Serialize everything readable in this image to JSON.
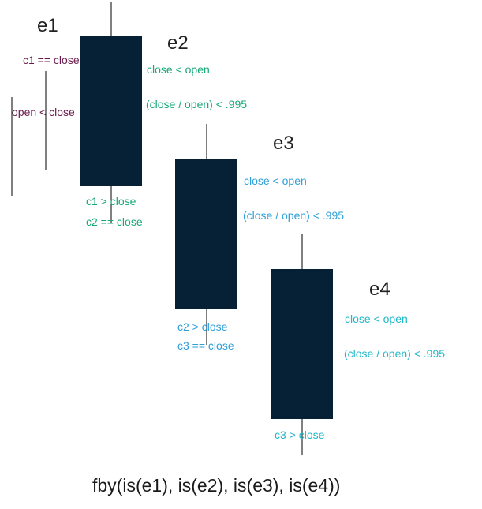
{
  "colors": {
    "candle": "#062136",
    "wick": "#000000",
    "event_label": "#222222",
    "e1": "#6a1b4d",
    "e2": "#17a877",
    "e3": "#2d9fd9",
    "e4": "#1fb8c9",
    "formula": "#1a1a1a"
  },
  "events": [
    {
      "name": "e1",
      "conditions": [
        "c1 == close",
        "open < close"
      ]
    },
    {
      "name": "e2",
      "conditions": [
        "close < open",
        "(close / open) < .995",
        "c1 > close",
        "c2 == close"
      ]
    },
    {
      "name": "e3",
      "conditions": [
        "close < open",
        "(close / open) < .995",
        "c2 > close",
        "c3 == close"
      ]
    },
    {
      "name": "e4",
      "conditions": [
        "close < open",
        "(close / open) < .995",
        "c3 > close"
      ]
    }
  ],
  "formula": "fby(is(e1), is(e2), is(e3), is(e4))"
}
